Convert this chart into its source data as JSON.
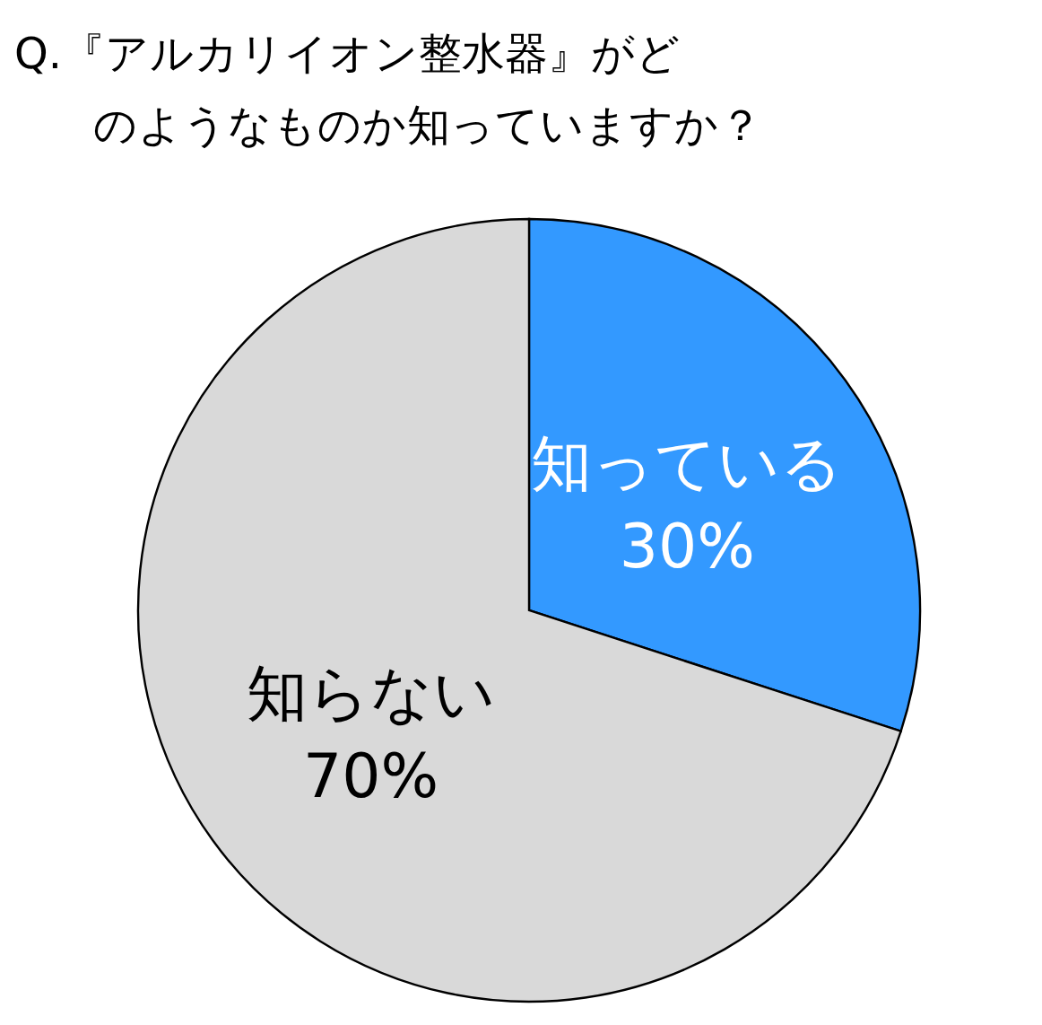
{
  "chart_data": {
    "type": "pie",
    "title": "Q.『アルカリイオン整水器』がどのようなものか知っていますか？",
    "categories": [
      "知っている",
      "知らない"
    ],
    "values": [
      30,
      70
    ],
    "colors": [
      "#3399ff",
      "#d9d9d9"
    ],
    "value_labels": [
      "30%",
      "70%"
    ]
  }
}
